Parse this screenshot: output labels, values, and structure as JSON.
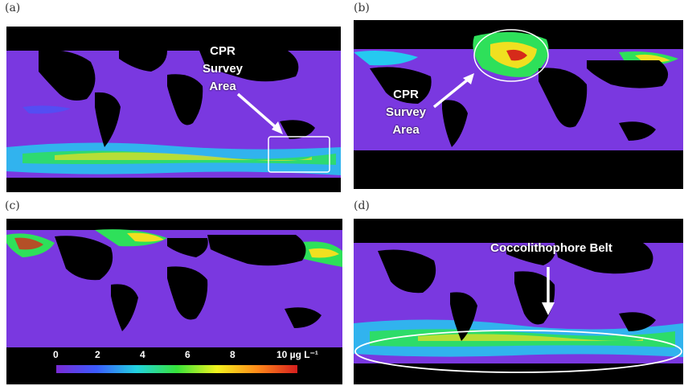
{
  "panels": {
    "a": {
      "label": "(a)",
      "annotation": [
        "CPR",
        "Survey",
        "Area"
      ]
    },
    "b": {
      "label": "(b)",
      "annotation": [
        "CPR",
        "Survey",
        "Area"
      ]
    },
    "c": {
      "label": "(c)"
    },
    "d": {
      "label": "(d)",
      "annotation": [
        "Coccolithophore Belt"
      ]
    }
  },
  "colorbar": {
    "ticks": [
      "0",
      "2",
      "4",
      "6",
      "8",
      "10 µg L⁻¹"
    ],
    "colors": [
      "#7a2bd6",
      "#3b5bff",
      "#22d3e0",
      "#37e33a",
      "#f2f21e",
      "#ff8a1a",
      "#d61e1e"
    ]
  },
  "colors": {
    "ocean": "#7a38e0",
    "land": "#000000",
    "bloom_green": "#2ee05a",
    "bloom_yellow": "#f0e020",
    "bloom_red": "#d62a1a",
    "bloom_cyan": "#25c9f0"
  }
}
